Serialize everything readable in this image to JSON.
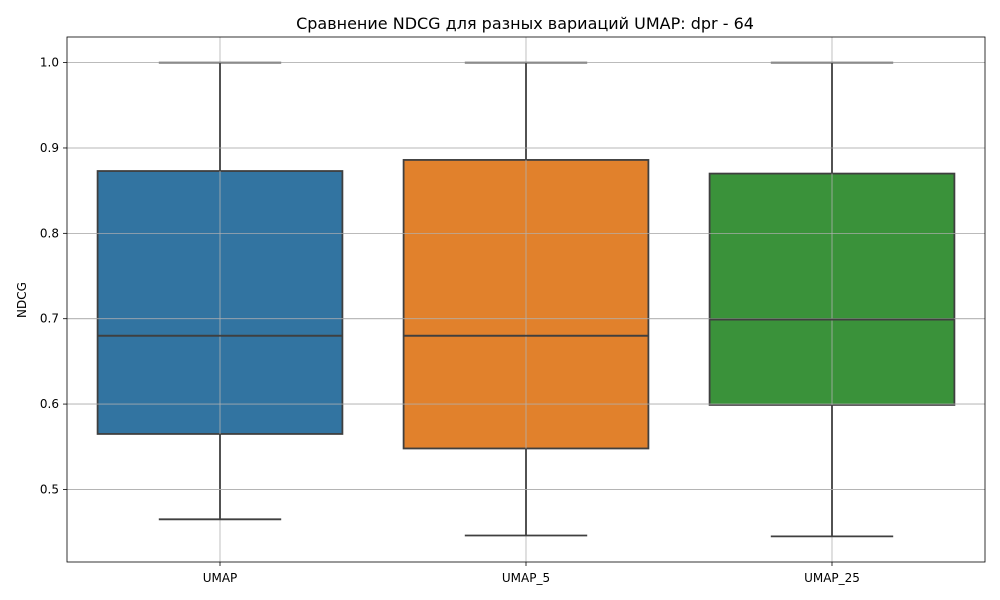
{
  "chart_data": {
    "type": "boxplot",
    "title": "Сравнение NDCG для разных вариаций UMAP: dpr - 64",
    "xlabel": "",
    "ylabel": "NDCG",
    "ylim": [
      0.415,
      1.03
    ],
    "yticks": [
      "0.5",
      "0.6",
      "0.7",
      "0.8",
      "0.9",
      "1.0"
    ],
    "grid": true,
    "categories": [
      "UMAP",
      "UMAP_5",
      "UMAP_25"
    ],
    "boxes": [
      {
        "name": "UMAP",
        "whisker_low": 0.465,
        "q1": 0.565,
        "median": 0.68,
        "q3": 0.873,
        "whisker_high": 1.0,
        "color": "#3274a1"
      },
      {
        "name": "UMAP_5",
        "whisker_low": 0.446,
        "q1": 0.548,
        "median": 0.68,
        "q3": 0.886,
        "whisker_high": 1.0,
        "color": "#e1812c"
      },
      {
        "name": "UMAP_25",
        "whisker_low": 0.445,
        "q1": 0.599,
        "median": 0.699,
        "q3": 0.87,
        "whisker_high": 1.0,
        "color": "#3a923a"
      }
    ]
  }
}
